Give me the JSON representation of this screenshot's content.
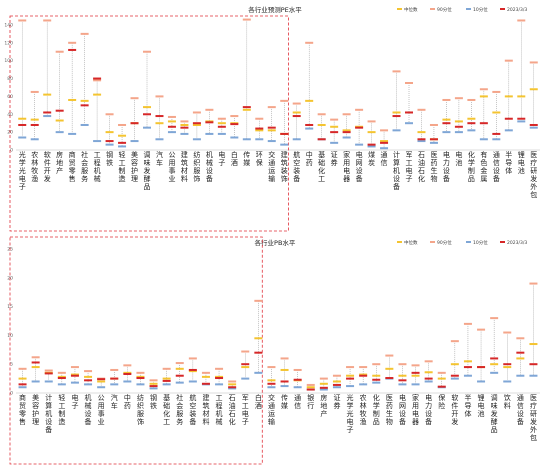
{
  "chart_data": [
    {
      "type": "scatter",
      "title": "各行业预测PE水平",
      "legend": [
        "中位数",
        "90分位",
        "10分位",
        "2023/3/3"
      ],
      "legend_position": "top-right",
      "y_ticks": [
        "0",
        "20",
        "40",
        "60",
        "80",
        "100",
        "120",
        "140"
      ],
      "ylim": [
        0,
        150
      ],
      "grid": false,
      "colors": {
        "median": "#f4c430",
        "p90": "#f4a58a",
        "p10": "#7fa6d6",
        "current": "#d62728"
      },
      "highlight_box": "left",
      "categories": [
        "光学光电子",
        "农林牧渔",
        "软件开发",
        "房地产",
        "商贸零售",
        "社会服务",
        "工程机械",
        "钢铁",
        "轻工制造",
        "美容护理",
        "调味发酵品",
        "汽车",
        "公用事业",
        "建筑材料",
        "纺织服饰",
        "机械设备",
        "电子",
        "白酒",
        "传媒",
        "环保",
        "交通运输",
        "建筑装饰",
        "航空装备",
        "中药",
        "基础化工",
        "证券",
        "家用电器",
        "电网设备",
        "煤炭",
        "通信",
        "计算机设备",
        "军工电子",
        "石油石化",
        "医药生物",
        "电力设备",
        "电池",
        "化学制品",
        "有色金属",
        "通信设备",
        "半导体",
        "锂电池",
        "医疗研发外包"
      ],
      "median": [
        35,
        34,
        62,
        33,
        56,
        55,
        62,
        20,
        16,
        30,
        48,
        30,
        32,
        28,
        28,
        32,
        30,
        30,
        45,
        22,
        22,
        18,
        42,
        55,
        28,
        26,
        22,
        26,
        20,
        10,
        42,
        42,
        20,
        12,
        34,
        32,
        35,
        60,
        42,
        60,
        60,
        68
      ],
      "p90": [
        145,
        65,
        145,
        110,
        120,
        130,
        78,
        40,
        28,
        58,
        110,
        60,
        37,
        32,
        42,
        45,
        35,
        38,
        146,
        35,
        48,
        55,
        52,
        120,
        40,
        34,
        40,
        45,
        32,
        22,
        88,
        75,
        45,
        28,
        56,
        58,
        56,
        68,
        65,
        100,
        145,
        98
      ],
      "p10": [
        14,
        12,
        38,
        20,
        18,
        28,
        10,
        6,
        4,
        10,
        25,
        12,
        20,
        18,
        12,
        18,
        18,
        14,
        12,
        12,
        10,
        6,
        12,
        24,
        12,
        8,
        14,
        6,
        4,
        2,
        22,
        30,
        10,
        8,
        20,
        20,
        22,
        12,
        12,
        22,
        32,
        25
      ],
      "current": [
        28,
        28,
        42,
        44,
        112,
        50,
        80,
        10,
        8,
        30,
        40,
        38,
        26,
        25,
        30,
        31,
        26,
        29,
        48,
        24,
        25,
        18,
        38,
        28,
        12,
        20,
        20,
        25,
        6,
        8,
        38,
        42,
        12,
        12,
        30,
        26,
        30,
        30,
        18,
        35,
        35,
        28
      ]
    },
    {
      "type": "scatter",
      "title": "各行业PB水平",
      "legend": [
        "中位数",
        "90分位",
        "10分位",
        "2023/3/3"
      ],
      "legend_position": "top-right",
      "y_ticks": [
        "0",
        "5",
        "10",
        "15",
        "20",
        "25"
      ],
      "ylim": [
        0,
        25
      ],
      "grid": false,
      "colors": {
        "median": "#f4c430",
        "p90": "#f4a58a",
        "p10": "#7fa6d6",
        "current": "#d62728"
      },
      "highlight_box": "left",
      "categories": [
        "商贸零售",
        "美容护理",
        "计算机设备",
        "轻工制造",
        "电子",
        "机械设备",
        "公用事业",
        "汽车",
        "中药",
        "纺织服饰",
        "钢铁",
        "基础化工",
        "社会服务",
        "航空装备",
        "建筑材料",
        "工程机械",
        "石油石化",
        "军工电子",
        "白酒",
        "交通运输",
        "传媒",
        "通信",
        "银行",
        "房地产",
        "证券",
        "光学光电子",
        "农林牧渔",
        "化学制品",
        "医药生物",
        "电网设备",
        "家用电器",
        "电力设备",
        "保险",
        "软件开发",
        "半导体",
        "锂电池",
        "调味发酵品",
        "饮料",
        "通信设备",
        "医疗研发外包"
      ],
      "median": [
        2.5,
        4.5,
        3.5,
        2.8,
        3.2,
        2.8,
        2.0,
        2.5,
        3.5,
        2.8,
        1.6,
        2.5,
        4.2,
        3.8,
        2.8,
        2.8,
        1.5,
        4.5,
        9.5,
        2.2,
        4.0,
        2.2,
        1.0,
        1.6,
        2.0,
        3.0,
        3.2,
        3.0,
        4.2,
        3.0,
        3.0,
        3.6,
        2.5,
        5.0,
        5.5,
        4.5,
        5.0,
        4.5,
        6.0,
        8.5
      ],
      "p90": [
        4.2,
        6.2,
        3.9,
        3.5,
        4.5,
        3.8,
        2.5,
        4.0,
        4.8,
        3.5,
        2.2,
        4.2,
        5.2,
        6.0,
        3.5,
        4.2,
        2.0,
        7.2,
        16.0,
        4.5,
        6.0,
        4.0,
        1.4,
        2.5,
        3.0,
        4.5,
        4.5,
        5.0,
        6.5,
        5.0,
        4.8,
        5.5,
        3.5,
        9.0,
        12.0,
        11.0,
        13.0,
        10.5,
        9.5,
        19.0
      ],
      "p10": [
        1.0,
        2.0,
        2.0,
        1.5,
        1.8,
        1.5,
        1.0,
        1.5,
        2.0,
        1.5,
        0.8,
        1.5,
        1.8,
        2.0,
        1.5,
        1.5,
        0.8,
        2.5,
        3.5,
        1.0,
        1.2,
        1.0,
        0.6,
        0.6,
        1.0,
        1.2,
        1.5,
        1.8,
        2.5,
        1.5,
        1.5,
        2.0,
        1.0,
        2.5,
        3.0,
        2.0,
        3.5,
        2.0,
        3.0,
        3.0
      ],
      "current": [
        1.5,
        5.3,
        3.4,
        2.6,
        3.0,
        2.2,
        2.4,
        2.5,
        3.3,
        2.6,
        1.2,
        2.1,
        3.0,
        4.0,
        1.6,
        2.6,
        1.0,
        5.0,
        7.0,
        1.6,
        2.0,
        2.3,
        0.6,
        0.9,
        1.4,
        2.5,
        3.0,
        2.3,
        2.6,
        2.2,
        3.5,
        2.5,
        1.1,
        3.0,
        4.5,
        4.5,
        6.0,
        5.0,
        7.0,
        5.0
      ]
    }
  ]
}
